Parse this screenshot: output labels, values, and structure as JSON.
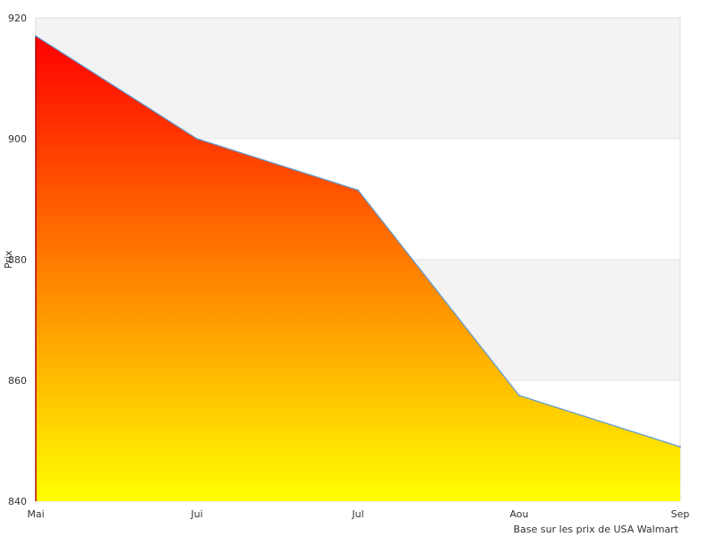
{
  "chart_data": {
    "type": "area",
    "categories": [
      "Mai",
      "Jui",
      "Jul",
      "Aou",
      "Sep"
    ],
    "series": [
      {
        "values": [
          917,
          900,
          891.5,
          857.5,
          849
        ]
      }
    ],
    "ylabel": "Prix",
    "xlabel": "",
    "ylim": [
      840,
      920
    ],
    "yticks": [
      840,
      860,
      880,
      900,
      920
    ],
    "grid": true,
    "legend": "none",
    "fill_gradient": {
      "top": "#ff0000",
      "bottom": "#ffff00"
    },
    "line_color": "#5b9bd5",
    "band_color": "#f3f3f3",
    "note": "Base sur les prix de USA Walmart"
  }
}
